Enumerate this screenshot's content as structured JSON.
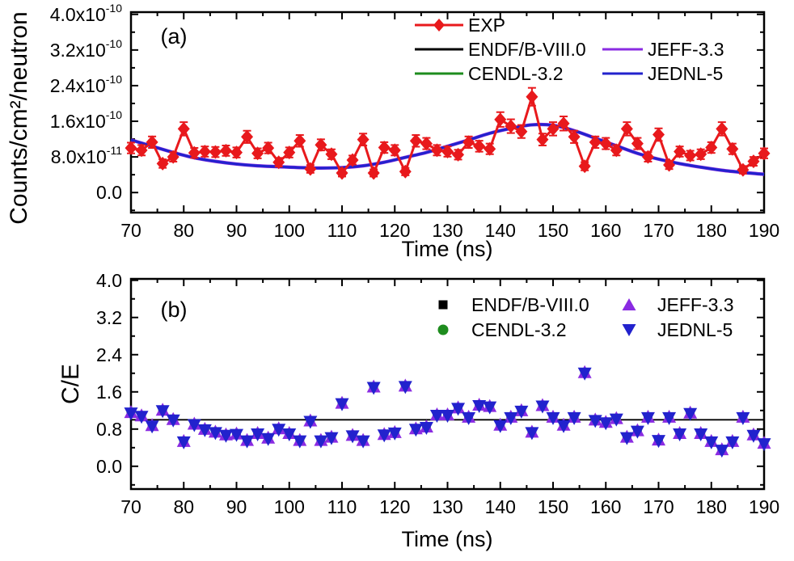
{
  "figure": {
    "panel_a_label": "(a)",
    "panel_b_label": "(b)",
    "xlabel": "Time (ns)",
    "ylabel_a": "Counts/cm²/neutron",
    "ylabel_b": "C/E"
  },
  "colors": {
    "exp_red": "#e8191c",
    "endf_black": "#000000",
    "cendl_green": "#1e8c1e",
    "jeff_purple": "#8a2be2",
    "jednl_blue": "#2222cd",
    "axis_black": "#000000"
  },
  "chart_data": [
    {
      "type": "line",
      "panel": "a",
      "title": "",
      "xlabel": "Time (ns)",
      "ylabel": "Counts/cm²/neutron",
      "y_units": "1e-10 Counts/cm2/neutron",
      "xlim": [
        70,
        190
      ],
      "ylim": [
        -0.45,
        4.05
      ],
      "grid": false,
      "legend_position": "top-center, two columns, no frame",
      "x_ticks": {
        "values": [
          70,
          80,
          90,
          100,
          110,
          120,
          130,
          140,
          150,
          160,
          170,
          180,
          190
        ],
        "labels": [
          "70",
          "80",
          "90",
          "100",
          "110",
          "120",
          "130",
          "140",
          "150",
          "160",
          "170",
          "180",
          "190"
        ]
      },
      "x_minor_ticks": [
        75,
        85,
        95,
        105,
        115,
        125,
        135,
        145,
        155,
        165,
        175,
        185
      ],
      "y_ticks": {
        "values": [
          0,
          0.8,
          1.6,
          2.4,
          3.2,
          4.0
        ],
        "labels": [
          "0.0",
          "8.0x10^-11",
          "1.6x10^-10",
          "2.4x10^-10",
          "3.2x10^-10",
          "4.0x10^-10"
        ]
      },
      "y_minor_ticks": [
        -0.4,
        0.4,
        1.2,
        2.0,
        2.8,
        3.6
      ],
      "series": [
        {
          "name": "EXP",
          "type": "scatter-line",
          "marker": "diamond",
          "color": "#e8191c",
          "yerr_estimate_formula": "0.05 + 0.07*y",
          "x": [
            70,
            72,
            74,
            76,
            78,
            80,
            82,
            84,
            86,
            88,
            90,
            92,
            94,
            96,
            98,
            100,
            102,
            104,
            106,
            108,
            110,
            112,
            114,
            116,
            118,
            120,
            122,
            124,
            126,
            128,
            130,
            132,
            134,
            136,
            138,
            140,
            142,
            144,
            146,
            148,
            150,
            152,
            154,
            156,
            158,
            160,
            162,
            164,
            166,
            168,
            170,
            172,
            174,
            176,
            178,
            180,
            182,
            184,
            186,
            188,
            190
          ],
          "y": [
            1.0,
            0.95,
            1.13,
            0.65,
            0.8,
            1.43,
            0.89,
            0.92,
            0.91,
            0.94,
            0.9,
            1.25,
            0.88,
            1.0,
            0.68,
            0.9,
            1.16,
            0.53,
            1.07,
            0.86,
            0.44,
            0.73,
            1.19,
            0.44,
            1.01,
            0.95,
            0.47,
            1.16,
            1.1,
            0.95,
            0.92,
            0.85,
            1.13,
            1.04,
            0.98,
            1.64,
            1.49,
            1.37,
            2.15,
            1.19,
            1.43,
            1.55,
            1.25,
            0.59,
            1.13,
            1.1,
            0.95,
            1.43,
            1.1,
            0.8,
            1.3,
            0.62,
            0.92,
            0.83,
            0.86,
            1.01,
            1.43,
            0.98,
            0.51,
            0.7,
            0.88
          ]
        },
        {
          "name": "ENDF/B-VIII.0",
          "type": "line",
          "color": "#000000",
          "width": 2.5,
          "curve": "model_curve"
        },
        {
          "name": "CENDL-3.2",
          "type": "line",
          "color": "#1e8c1e",
          "width": 2.5,
          "curve": "model_curve"
        },
        {
          "name": "JEFF-3.3",
          "type": "line",
          "color": "#8a2be2",
          "width": 4.2,
          "curve": "model_curve"
        },
        {
          "name": "JEDNL-5",
          "type": "line",
          "color": "#2222cd",
          "width": 3.1,
          "curve": "model_curve"
        }
      ],
      "model_curve": {
        "note": "all four evaluated-library curves coincide; smooth curve, values in 1e-10",
        "x": [
          70,
          74,
          78,
          82,
          86,
          90,
          94,
          98,
          102,
          106,
          110,
          114,
          118,
          122,
          126,
          130,
          134,
          138,
          142,
          146,
          150,
          154,
          158,
          162,
          166,
          170,
          174,
          178,
          182,
          186,
          190
        ],
        "y": [
          1.18,
          1.04,
          0.9,
          0.78,
          0.7,
          0.64,
          0.6,
          0.58,
          0.56,
          0.55,
          0.56,
          0.6,
          0.68,
          0.79,
          0.9,
          1.04,
          1.18,
          1.33,
          1.44,
          1.52,
          1.51,
          1.39,
          1.22,
          1.05,
          0.88,
          0.75,
          0.65,
          0.57,
          0.5,
          0.45,
          0.41
        ]
      }
    },
    {
      "type": "scatter",
      "panel": "b",
      "title": "",
      "xlabel": "Time (ns)",
      "ylabel": "C/E",
      "xlim": [
        70,
        190
      ],
      "ylim": [
        -0.49,
        4.03
      ],
      "grid": false,
      "reference_line_y": 1.0,
      "legend_position": "top-center, two columns, no frame",
      "x_ticks": {
        "values": [
          70,
          80,
          90,
          100,
          110,
          120,
          130,
          140,
          150,
          160,
          170,
          180,
          190
        ],
        "labels": [
          "70",
          "80",
          "90",
          "100",
          "110",
          "120",
          "130",
          "140",
          "150",
          "160",
          "170",
          "180",
          "190"
        ]
      },
      "x_minor_ticks": [
        75,
        85,
        95,
        105,
        115,
        125,
        135,
        145,
        155,
        165,
        175,
        185
      ],
      "y_ticks": {
        "values": [
          0,
          0.8,
          1.6,
          2.4,
          3.2,
          4.0
        ],
        "labels": [
          "0.0",
          "0.8",
          "1.6",
          "2.4",
          "3.2",
          "4.0"
        ]
      },
      "y_minor_ticks": [
        -0.4,
        0.4,
        1.2,
        2.0,
        2.8,
        3.6
      ],
      "series": [
        {
          "name": "ENDF/B-VIII.0",
          "marker": "square",
          "color": "#000000"
        },
        {
          "name": "CENDL-3.2",
          "marker": "circle",
          "color": "#1e8c1e"
        },
        {
          "name": "JEFF-3.3",
          "marker": "triangle-up",
          "color": "#8a2be2"
        },
        {
          "name": "JEDNL-5",
          "marker": "triangle-down",
          "color": "#2222cd"
        }
      ],
      "points": {
        "note": "C/E values of the four libraries coincide; markers overlap at each point",
        "x": [
          70,
          72,
          74,
          76,
          78,
          80,
          82,
          84,
          86,
          88,
          90,
          92,
          94,
          96,
          98,
          100,
          102,
          104,
          106,
          108,
          110,
          112,
          114,
          116,
          118,
          120,
          122,
          124,
          126,
          128,
          130,
          132,
          134,
          136,
          138,
          140,
          142,
          144,
          146,
          148,
          150,
          152,
          154,
          156,
          158,
          160,
          162,
          164,
          166,
          168,
          170,
          172,
          174,
          176,
          178,
          180,
          182,
          184,
          186,
          188,
          190
        ],
        "y": [
          1.15,
          1.08,
          0.87,
          1.2,
          1.0,
          0.53,
          0.9,
          0.79,
          0.73,
          0.67,
          0.69,
          0.55,
          0.7,
          0.6,
          0.8,
          0.7,
          0.55,
          0.97,
          0.55,
          0.62,
          1.35,
          0.66,
          0.55,
          1.7,
          0.68,
          0.72,
          1.72,
          0.8,
          0.84,
          1.1,
          1.1,
          1.25,
          1.05,
          1.31,
          1.28,
          0.88,
          1.05,
          1.19,
          0.73,
          1.3,
          1.05,
          0.88,
          1.05,
          2.01,
          0.99,
          0.94,
          1.02,
          0.62,
          0.76,
          1.05,
          0.56,
          1.05,
          0.7,
          1.14,
          0.7,
          0.53,
          0.35,
          0.53,
          1.05,
          0.67,
          0.49
        ]
      }
    }
  ]
}
